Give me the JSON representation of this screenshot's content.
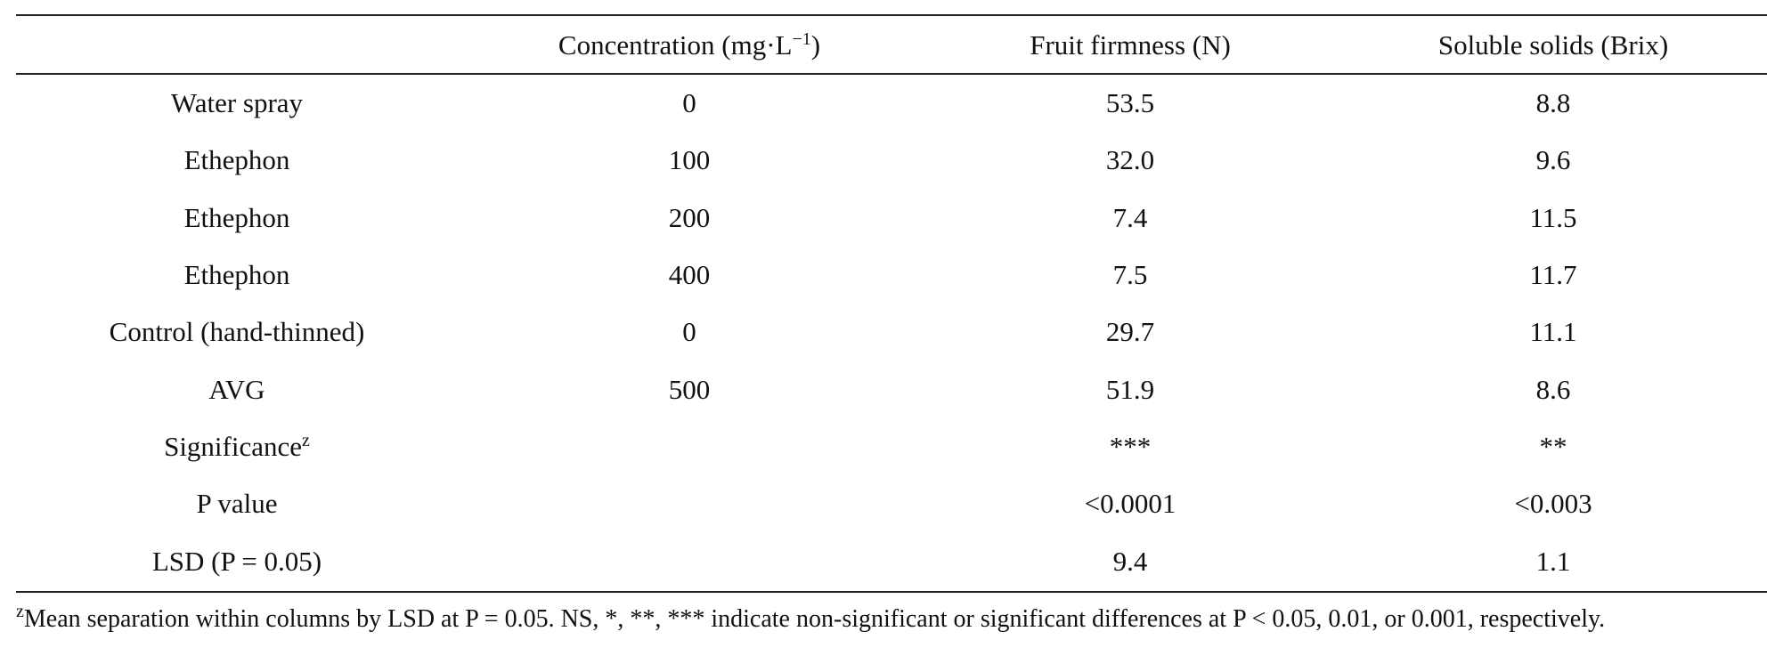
{
  "table": {
    "headers": [
      "",
      "Concentration (mg·L",
      "Fruit firmness (N)",
      "Soluble solids (Brix)"
    ],
    "concentration_sup": "−1",
    "concentration_suffix": ")",
    "rows": [
      [
        "Water spray",
        "0",
        "53.5",
        "8.8"
      ],
      [
        "Ethephon",
        "100",
        "32.0",
        "9.6"
      ],
      [
        "Ethephon",
        "200",
        "7.4",
        "11.5"
      ],
      [
        "Ethephon",
        "400",
        "7.5",
        "11.7"
      ],
      [
        "Control (hand-thinned)",
        "0",
        "29.7",
        "11.1"
      ],
      [
        "AVG",
        "500",
        "51.9",
        "8.6"
      ],
      [
        "Significance",
        "",
        "***",
        "**"
      ],
      [
        "P value",
        "",
        "<0.0001",
        "<0.003"
      ],
      [
        "LSD (P = 0.05)",
        "",
        "9.4",
        "1.1"
      ]
    ],
    "significance_sup": "z"
  },
  "footnote": {
    "marker": "z",
    "text": "Mean separation within columns by LSD at P = 0.05. NS, *, **, *** indicate non-significant or significant differences at P < 0.05, 0.01, or 0.001, respectively."
  }
}
